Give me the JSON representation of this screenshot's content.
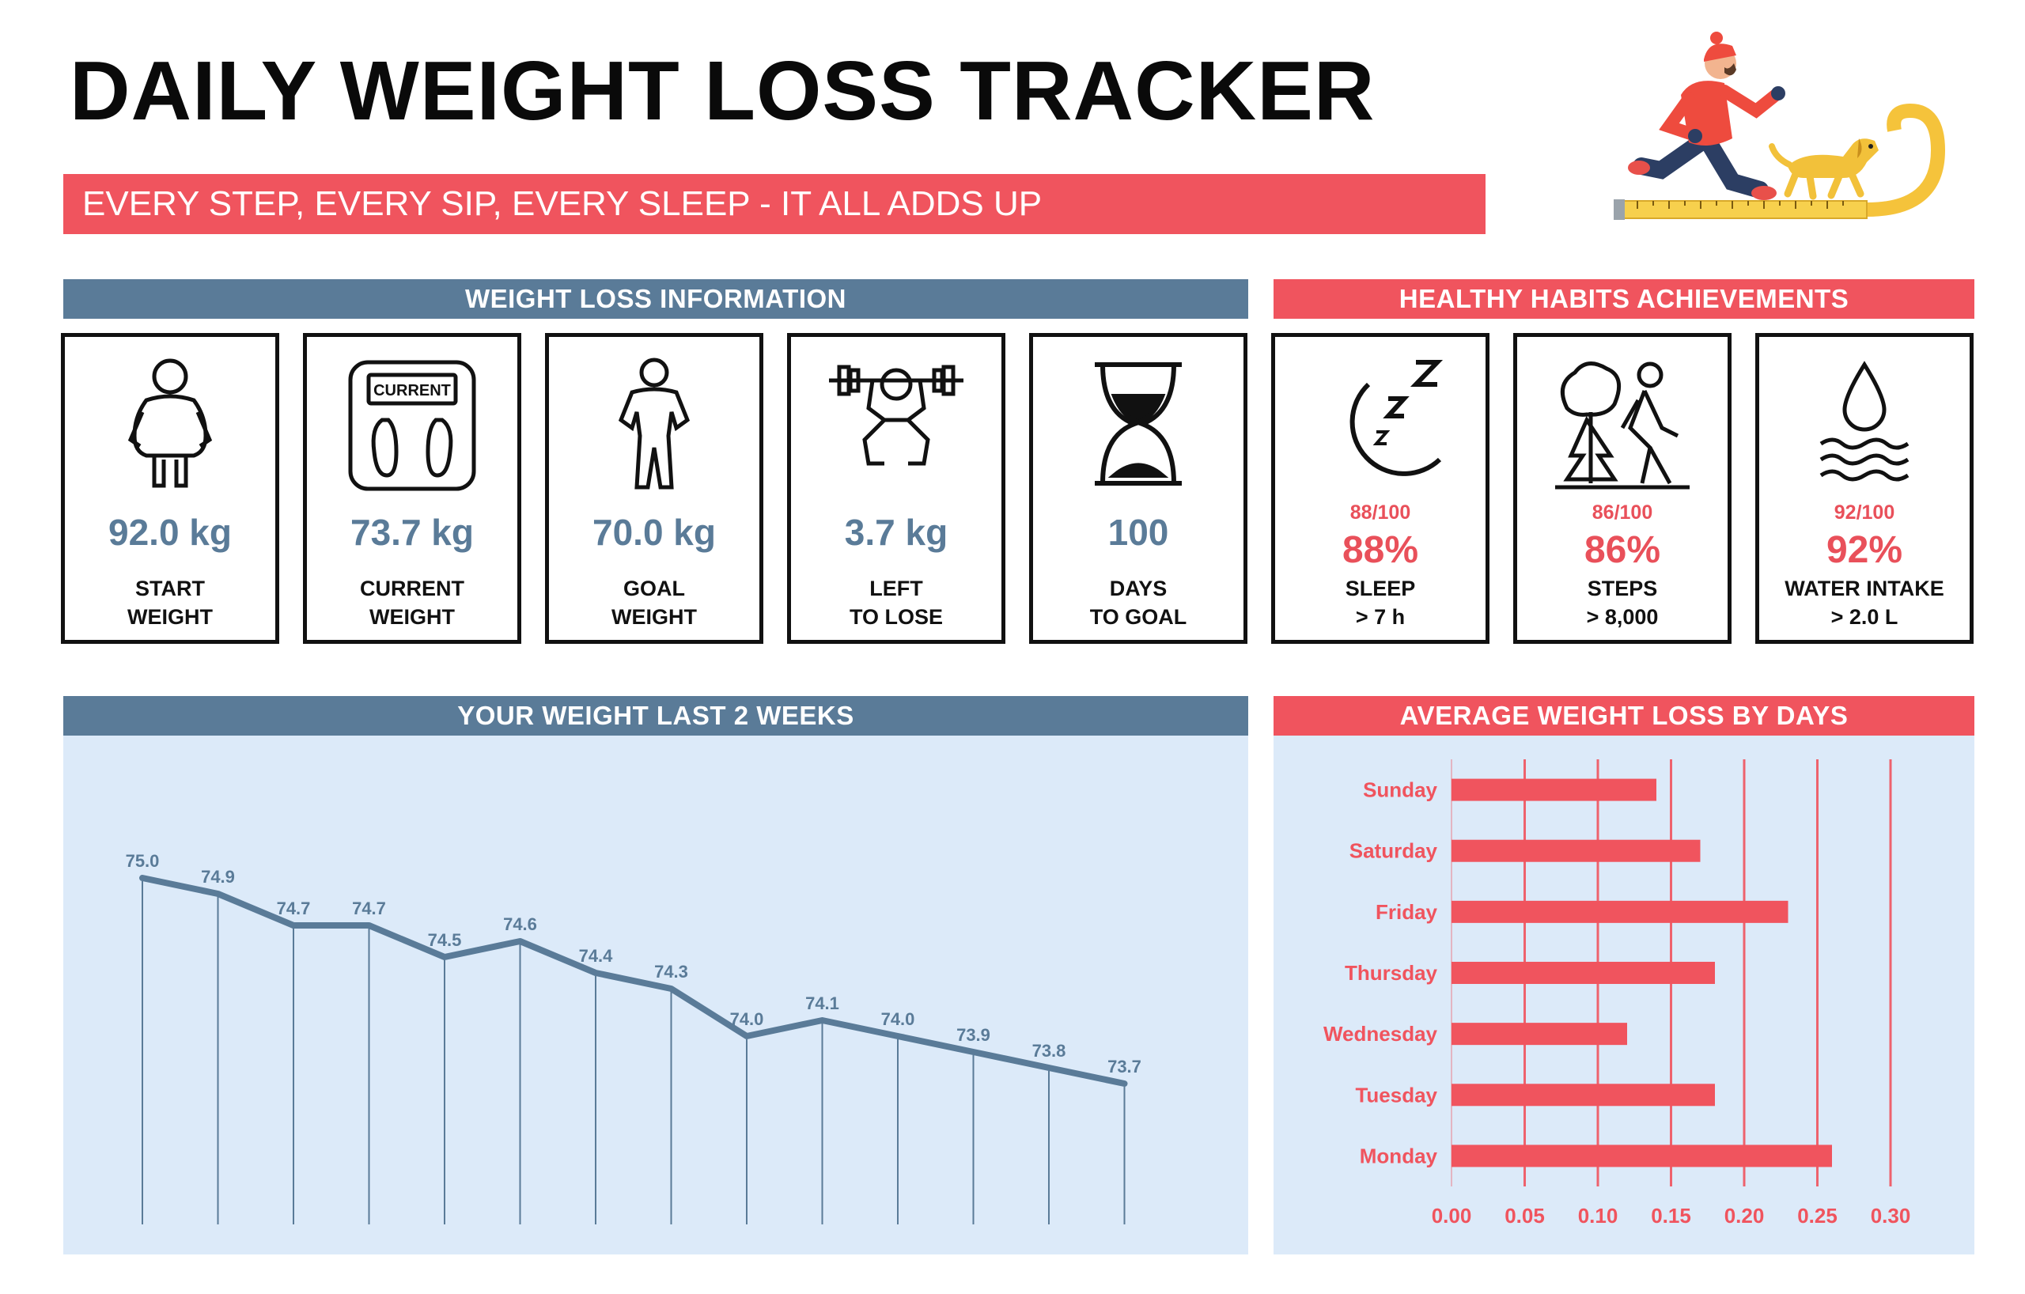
{
  "title": "DAILY WEIGHT LOSS TRACKER",
  "tagline": "EVERY STEP, EVERY SIP, EVERY SLEEP - IT ALL ADDS UP",
  "colors": {
    "blue": "#5a7b98",
    "red": "#f0545e",
    "panel": "#dceaf9"
  },
  "sections": {
    "weight_info": "WEIGHT LOSS INFORMATION",
    "habits": "HEALTHY HABITS ACHIEVEMENTS",
    "weight_chart": "YOUR WEIGHT LAST 2 WEEKS",
    "loss_chart": "AVERAGE WEIGHT LOSS BY DAYS"
  },
  "weight_cards": [
    {
      "icon": "overweight-person-icon",
      "value": "92.0 kg",
      "label1": "START",
      "label2": "WEIGHT"
    },
    {
      "icon": "bathroom-scale-icon",
      "value": "73.7 kg",
      "label1": "CURRENT",
      "label2": "WEIGHT",
      "scale_text": "CURRENT"
    },
    {
      "icon": "fit-person-icon",
      "value": "70.0 kg",
      "label1": "GOAL",
      "label2": "WEIGHT"
    },
    {
      "icon": "weightlifter-icon",
      "value": "3.7 kg",
      "label1": "LEFT",
      "label2": "TO LOSE"
    },
    {
      "icon": "hourglass-icon",
      "value": "100",
      "label1": "DAYS",
      "label2": "TO GOAL"
    }
  ],
  "habit_cards": [
    {
      "icon": "moon-sleep-icon",
      "score": "88/100",
      "percent": "88%",
      "label1": "SLEEP",
      "label2": "> 7 h"
    },
    {
      "icon": "walking-person-icon",
      "score": "86/100",
      "percent": "86%",
      "label1": "STEPS",
      "label2": "> 8,000"
    },
    {
      "icon": "water-drop-icon",
      "score": "92/100",
      "percent": "92%",
      "label1": "WATER INTAKE",
      "label2": "> 2.0 L"
    }
  ],
  "chart_data": [
    {
      "type": "line",
      "title": "YOUR WEIGHT LAST 2 WEEKS",
      "values": [
        75.0,
        74.9,
        74.7,
        74.7,
        74.5,
        74.6,
        74.4,
        74.3,
        74.0,
        74.1,
        74.0,
        73.9,
        73.8,
        73.7
      ],
      "data_labels": [
        "75.0",
        "74.9",
        "74.7",
        "74.7",
        "74.5",
        "74.6",
        "74.4",
        "74.3",
        "74.0",
        "74.1",
        "74.0",
        "73.9",
        "73.8",
        "73.7"
      ],
      "drop_lines": true,
      "color": "#5a7b98"
    },
    {
      "type": "bar",
      "orientation": "horizontal",
      "title": "AVERAGE WEIGHT LOSS BY DAYS",
      "categories": [
        "Sunday",
        "Saturday",
        "Friday",
        "Thursday",
        "Wednesday",
        "Tuesday",
        "Monday"
      ],
      "values": [
        0.14,
        0.17,
        0.23,
        0.18,
        0.12,
        0.18,
        0.26
      ],
      "xticks": [
        "0.00",
        "0.05",
        "0.10",
        "0.15",
        "0.20",
        "0.25",
        "0.30"
      ],
      "xlim": [
        0,
        0.3
      ],
      "grid": true,
      "color": "#f0545e"
    }
  ]
}
